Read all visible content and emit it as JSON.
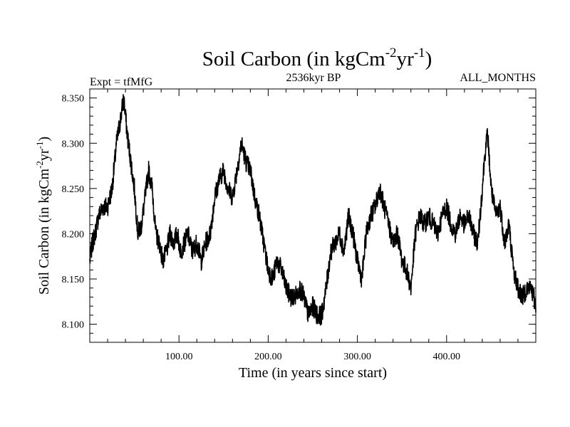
{
  "chart_data": {
    "type": "line",
    "title": {
      "main": "Soil Carbon (in kgCm",
      "sup1": "-2",
      "mid": "yr",
      "sup2": "-1",
      "end": ")"
    },
    "subtitle_left": "Expt = tfMfG",
    "subtitle_center": "2536kyr BP",
    "subtitle_right": "ALL_MONTHS",
    "xlabel": "Time (in years since start)",
    "ylabel": {
      "main": "Soil Carbon (in kgCm",
      "sup1": "-2",
      "mid": "yr",
      "sup2": "-1",
      "end": ")"
    },
    "xlim": [
      0,
      500
    ],
    "ylim": [
      8.08,
      8.36
    ],
    "xticks": [
      100,
      200,
      300,
      400
    ],
    "xtick_labels": [
      "100.00",
      "200.00",
      "300.00",
      "400.00"
    ],
    "yticks": [
      8.1,
      8.15,
      8.2,
      8.25,
      8.3,
      8.35
    ],
    "ytick_labels": [
      "8.100",
      "8.150",
      "8.200",
      "8.250",
      "8.300",
      "8.350"
    ],
    "series": [
      {
        "color": "#000000",
        "x": [
          0,
          3,
          6,
          10,
          15,
          20,
          25,
          30,
          35,
          38,
          42,
          46,
          50,
          54,
          58,
          62,
          66,
          70,
          74,
          78,
          82,
          86,
          90,
          94,
          98,
          102,
          106,
          110,
          115,
          120,
          125,
          130,
          135,
          140,
          145,
          150,
          155,
          160,
          165,
          170,
          175,
          180,
          185,
          190,
          195,
          200,
          205,
          210,
          215,
          220,
          225,
          230,
          235,
          240,
          245,
          250,
          255,
          260,
          265,
          270,
          275,
          280,
          285,
          290,
          295,
          300,
          305,
          310,
          315,
          320,
          325,
          330,
          335,
          340,
          345,
          350,
          355,
          360,
          365,
          370,
          375,
          380,
          385,
          390,
          395,
          400,
          405,
          410,
          415,
          420,
          425,
          430,
          435,
          440,
          443,
          446,
          450,
          455,
          460,
          465,
          470,
          475,
          480,
          485,
          490,
          495,
          500
        ],
        "y": [
          8.17,
          8.19,
          8.2,
          8.22,
          8.23,
          8.23,
          8.25,
          8.3,
          8.33,
          8.35,
          8.31,
          8.28,
          8.25,
          8.2,
          8.21,
          8.24,
          8.27,
          8.25,
          8.2,
          8.19,
          8.17,
          8.18,
          8.2,
          8.19,
          8.2,
          8.18,
          8.19,
          8.2,
          8.18,
          8.19,
          8.17,
          8.19,
          8.2,
          8.24,
          8.26,
          8.27,
          8.25,
          8.24,
          8.27,
          8.3,
          8.28,
          8.27,
          8.24,
          8.22,
          8.19,
          8.16,
          8.15,
          8.17,
          8.16,
          8.14,
          8.13,
          8.13,
          8.14,
          8.13,
          8.11,
          8.12,
          8.11,
          8.11,
          8.14,
          8.18,
          8.19,
          8.2,
          8.18,
          8.22,
          8.2,
          8.17,
          8.15,
          8.2,
          8.22,
          8.23,
          8.25,
          8.23,
          8.21,
          8.19,
          8.2,
          8.17,
          8.16,
          8.14,
          8.2,
          8.22,
          8.21,
          8.22,
          8.21,
          8.2,
          8.22,
          8.23,
          8.21,
          8.2,
          8.22,
          8.21,
          8.22,
          8.2,
          8.19,
          8.25,
          8.29,
          8.31,
          8.25,
          8.22,
          8.23,
          8.19,
          8.21,
          8.16,
          8.14,
          8.13,
          8.14,
          8.14,
          8.12
        ]
      }
    ]
  }
}
